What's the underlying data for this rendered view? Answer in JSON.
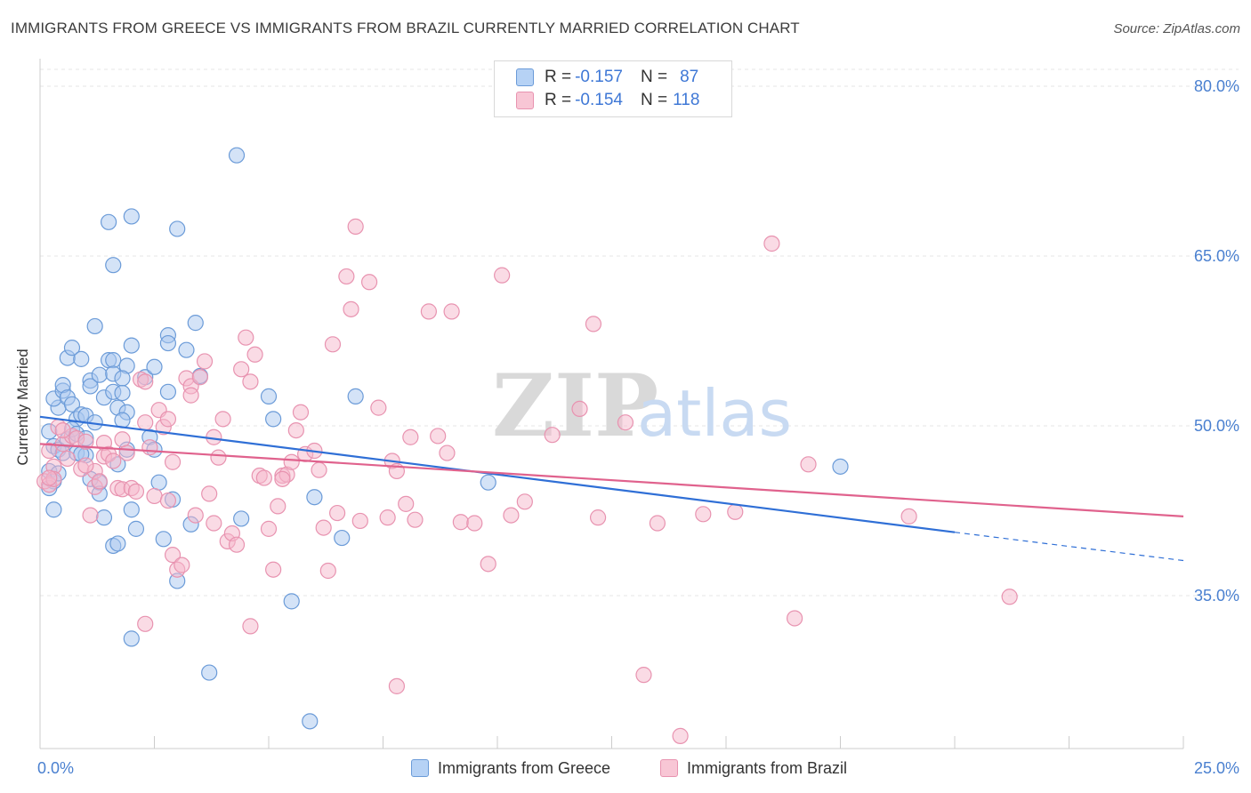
{
  "header": {
    "title": "IMMIGRANTS FROM GREECE VS IMMIGRANTS FROM BRAZIL CURRENTLY MARRIED CORRELATION CHART",
    "source": "Source: ZipAtlas.com"
  },
  "legend": {
    "rows": [
      {
        "r_label": "R = ",
        "r_value": "-0.157",
        "n_label": "N = ",
        "n_value": "87"
      },
      {
        "r_label": "R = ",
        "r_value": "-0.154",
        "n_label": "N = ",
        "n_value": "118"
      }
    ]
  },
  "watermark": {
    "part1": "ZIP",
    "part2": "atlas"
  },
  "colors": {
    "greece_fill": "#a9c8f0",
    "greece_stroke": "#6b9bd8",
    "greece_line": "#2f6fd6",
    "brazil_fill": "#f5b8cb",
    "brazil_stroke": "#e893b0",
    "brazil_line": "#e0628d",
    "tick_label": "#4a80d0",
    "grid": "#e6e6e6"
  },
  "chart_data": {
    "type": "scatter",
    "title": "IMMIGRANTS FROM GREECE VS IMMIGRANTS FROM BRAZIL CURRENTLY MARRIED CORRELATION CHART",
    "xlabel": "",
    "ylabel": "Currently Married",
    "xlim": [
      0,
      25
    ],
    "ylim": [
      22,
      82
    ],
    "x_tick_labels": [
      "0.0%",
      "25.0%"
    ],
    "y_ticks": [
      35,
      50,
      65,
      80
    ],
    "y_tick_labels": [
      "35.0%",
      "50.0%",
      "65.0%",
      "80.0%"
    ],
    "grid": true,
    "legend_position": "top-center",
    "series": [
      {
        "name": "Immigrants from Greece",
        "r": -0.157,
        "n": 87,
        "trend": {
          "x0": 0,
          "y0": 50.8,
          "x1": 20,
          "y1": 40.6,
          "dash_to_x": 25,
          "dash_to_y": 38.1
        },
        "points": [
          [
            0.2,
            49.5
          ],
          [
            0.3,
            48.2
          ],
          [
            0.4,
            47.9
          ],
          [
            0.2,
            46.0
          ],
          [
            0.3,
            45.1
          ],
          [
            0.2,
            44.5
          ],
          [
            0.5,
            47.6
          ],
          [
            0.6,
            48.8
          ],
          [
            0.4,
            51.6
          ],
          [
            0.3,
            52.4
          ],
          [
            0.5,
            53.1
          ],
          [
            0.5,
            53.6
          ],
          [
            0.6,
            52.5
          ],
          [
            0.7,
            51.9
          ],
          [
            0.8,
            50.6
          ],
          [
            0.7,
            49.7
          ],
          [
            0.9,
            51.0
          ],
          [
            1.0,
            50.9
          ],
          [
            0.8,
            47.6
          ],
          [
            1.0,
            47.4
          ],
          [
            0.6,
            56.0
          ],
          [
            0.7,
            56.9
          ],
          [
            0.9,
            55.9
          ],
          [
            1.1,
            54.0
          ],
          [
            1.1,
            53.5
          ],
          [
            1.2,
            50.3
          ],
          [
            1.1,
            45.3
          ],
          [
            1.3,
            45.0
          ],
          [
            1.3,
            44.0
          ],
          [
            0.3,
            42.6
          ],
          [
            1.2,
            58.8
          ],
          [
            1.3,
            54.5
          ],
          [
            1.4,
            52.5
          ],
          [
            1.4,
            41.9
          ],
          [
            1.6,
            39.4
          ],
          [
            1.7,
            39.6
          ],
          [
            1.5,
            55.8
          ],
          [
            1.6,
            55.8
          ],
          [
            1.6,
            54.6
          ],
          [
            1.6,
            53.0
          ],
          [
            1.7,
            51.6
          ],
          [
            1.7,
            46.6
          ],
          [
            1.9,
            55.3
          ],
          [
            1.8,
            54.2
          ],
          [
            1.8,
            52.9
          ],
          [
            1.9,
            51.2
          ],
          [
            1.8,
            50.5
          ],
          [
            1.9,
            47.9
          ],
          [
            2.0,
            57.1
          ],
          [
            2.0,
            42.6
          ],
          [
            2.1,
            40.9
          ],
          [
            2.0,
            31.2
          ],
          [
            2.0,
            68.5
          ],
          [
            1.5,
            68.0
          ],
          [
            1.6,
            64.2
          ],
          [
            2.3,
            54.3
          ],
          [
            2.5,
            55.2
          ],
          [
            2.4,
            49.0
          ],
          [
            2.5,
            47.9
          ],
          [
            2.6,
            45.0
          ],
          [
            2.7,
            40.0
          ],
          [
            2.8,
            58.0
          ],
          [
            2.8,
            57.3
          ],
          [
            2.8,
            53.0
          ],
          [
            2.9,
            43.5
          ],
          [
            3.0,
            36.3
          ],
          [
            3.0,
            67.4
          ],
          [
            3.2,
            56.7
          ],
          [
            3.4,
            59.1
          ],
          [
            3.3,
            41.3
          ],
          [
            3.5,
            54.4
          ],
          [
            3.7,
            28.2
          ],
          [
            4.3,
            73.9
          ],
          [
            4.4,
            41.8
          ],
          [
            5.0,
            52.6
          ],
          [
            5.1,
            50.6
          ],
          [
            5.5,
            34.5
          ],
          [
            5.9,
            23.9
          ],
          [
            6.0,
            43.7
          ],
          [
            6.6,
            40.1
          ],
          [
            6.9,
            52.6
          ],
          [
            9.8,
            45.0
          ],
          [
            17.5,
            46.4
          ],
          [
            0.8,
            49.3
          ],
          [
            0.4,
            45.8
          ],
          [
            1.0,
            48.9
          ],
          [
            0.9,
            47.5
          ]
        ]
      },
      {
        "name": "Immigrants from Brazil",
        "r": -0.154,
        "n": 118,
        "trend": {
          "x0": 0,
          "y0": 48.4,
          "x1": 25,
          "y1": 42.0
        },
        "points": [
          [
            0.1,
            45.1
          ],
          [
            0.2,
            44.8
          ],
          [
            0.3,
            46.4
          ],
          [
            0.2,
            47.8
          ],
          [
            0.3,
            45.3
          ],
          [
            0.4,
            49.9
          ],
          [
            0.5,
            48.4
          ],
          [
            0.6,
            47.1
          ],
          [
            0.7,
            49.1
          ],
          [
            0.8,
            48.9
          ],
          [
            0.9,
            46.2
          ],
          [
            1.0,
            48.6
          ],
          [
            1.1,
            42.1
          ],
          [
            1.2,
            46.0
          ],
          [
            1.2,
            44.6
          ],
          [
            1.3,
            45.1
          ],
          [
            1.4,
            47.3
          ],
          [
            1.4,
            48.5
          ],
          [
            1.5,
            47.5
          ],
          [
            1.6,
            46.9
          ],
          [
            1.7,
            44.5
          ],
          [
            1.8,
            48.8
          ],
          [
            1.8,
            44.4
          ],
          [
            2.0,
            44.5
          ],
          [
            2.1,
            44.2
          ],
          [
            2.2,
            54.1
          ],
          [
            2.3,
            53.9
          ],
          [
            2.3,
            50.3
          ],
          [
            2.4,
            48.1
          ],
          [
            2.5,
            43.8
          ],
          [
            2.6,
            51.4
          ],
          [
            2.7,
            49.9
          ],
          [
            2.8,
            50.6
          ],
          [
            2.8,
            43.4
          ],
          [
            2.9,
            46.8
          ],
          [
            2.9,
            38.6
          ],
          [
            3.0,
            37.3
          ],
          [
            3.1,
            37.7
          ],
          [
            3.2,
            54.2
          ],
          [
            3.3,
            53.5
          ],
          [
            3.3,
            52.7
          ],
          [
            3.4,
            42.1
          ],
          [
            3.5,
            54.3
          ],
          [
            3.6,
            55.7
          ],
          [
            3.7,
            44.0
          ],
          [
            3.8,
            41.4
          ],
          [
            3.8,
            49.0
          ],
          [
            3.9,
            47.2
          ],
          [
            4.0,
            50.6
          ],
          [
            4.1,
            39.8
          ],
          [
            4.2,
            40.5
          ],
          [
            4.3,
            39.5
          ],
          [
            4.4,
            55.0
          ],
          [
            4.5,
            57.8
          ],
          [
            4.6,
            53.9
          ],
          [
            4.7,
            56.3
          ],
          [
            4.8,
            45.6
          ],
          [
            4.9,
            45.4
          ],
          [
            5.0,
            40.9
          ],
          [
            5.1,
            37.3
          ],
          [
            5.2,
            42.9
          ],
          [
            5.3,
            45.6
          ],
          [
            5.4,
            45.7
          ],
          [
            5.5,
            46.8
          ],
          [
            5.6,
            49.6
          ],
          [
            5.7,
            51.2
          ],
          [
            5.8,
            47.5
          ],
          [
            6.0,
            47.8
          ],
          [
            6.1,
            46.1
          ],
          [
            6.2,
            41.0
          ],
          [
            6.3,
            37.2
          ],
          [
            6.4,
            57.2
          ],
          [
            6.5,
            42.3
          ],
          [
            6.7,
            63.2
          ],
          [
            6.8,
            60.3
          ],
          [
            6.9,
            67.6
          ],
          [
            7.0,
            41.6
          ],
          [
            7.2,
            62.7
          ],
          [
            7.4,
            51.6
          ],
          [
            7.6,
            41.9
          ],
          [
            7.7,
            46.9
          ],
          [
            7.8,
            46.0
          ],
          [
            8.0,
            43.1
          ],
          [
            8.1,
            49.0
          ],
          [
            8.2,
            41.7
          ],
          [
            8.5,
            60.1
          ],
          [
            8.7,
            49.1
          ],
          [
            8.9,
            47.6
          ],
          [
            9.0,
            60.1
          ],
          [
            9.2,
            41.5
          ],
          [
            9.5,
            41.4
          ],
          [
            9.8,
            37.8
          ],
          [
            10.1,
            63.3
          ],
          [
            10.3,
            42.1
          ],
          [
            10.6,
            43.3
          ],
          [
            11.2,
            49.2
          ],
          [
            11.8,
            51.5
          ],
          [
            12.1,
            59.0
          ],
          [
            12.2,
            41.9
          ],
          [
            12.8,
            50.3
          ],
          [
            13.2,
            28.0
          ],
          [
            13.5,
            41.4
          ],
          [
            14.0,
            22.6
          ],
          [
            14.5,
            42.2
          ],
          [
            15.2,
            42.4
          ],
          [
            16.0,
            66.1
          ],
          [
            16.5,
            33.0
          ],
          [
            16.8,
            46.6
          ],
          [
            19.0,
            42.0
          ],
          [
            21.2,
            34.9
          ],
          [
            5.3,
            45.3
          ],
          [
            4.6,
            32.3
          ],
          [
            7.8,
            27.0
          ],
          [
            2.3,
            32.5
          ],
          [
            0.5,
            49.6
          ],
          [
            0.2,
            45.4
          ],
          [
            1.0,
            46.5
          ],
          [
            1.9,
            47.6
          ]
        ]
      }
    ]
  },
  "bottom_legend": {
    "greece": "Immigrants from Greece",
    "brazil": "Immigrants from Brazil"
  }
}
